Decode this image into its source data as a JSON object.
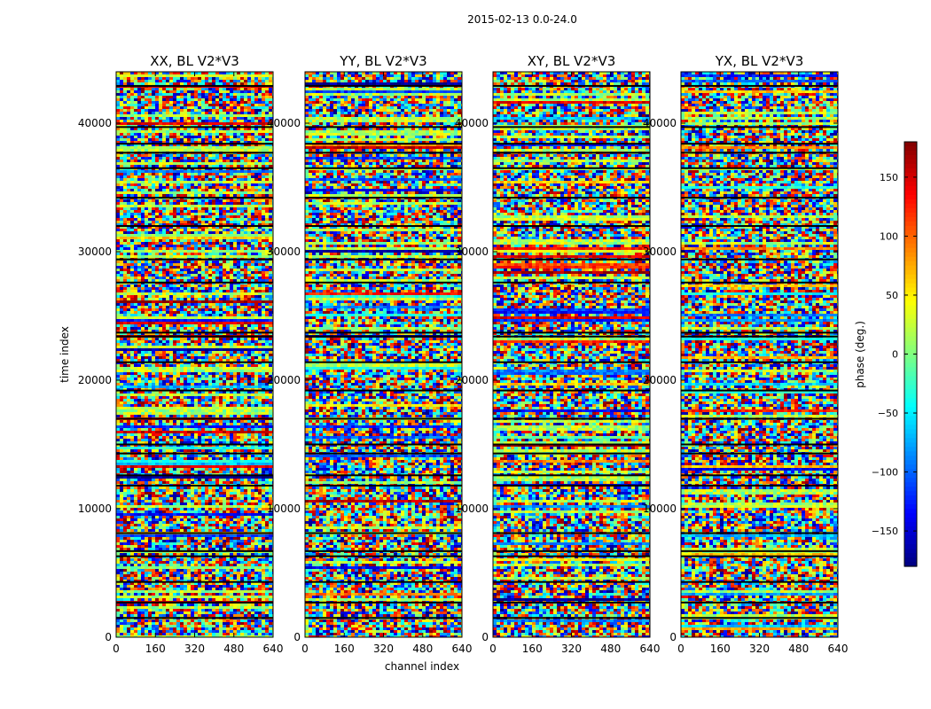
{
  "suptitle": "2015-02-13 0.0-24.0",
  "chart_data": {
    "type": "heatmap",
    "title": "2015-02-13 0.0-24.0",
    "xlabel": "channel index",
    "ylabel": "time index",
    "xlim": [
      0,
      640
    ],
    "ylim": [
      0,
      44000
    ],
    "x_ticks": [
      0,
      160,
      320,
      480,
      640
    ],
    "x_tick_labels": [
      "0",
      "160",
      "320",
      "480",
      "640"
    ],
    "y_ticks": [
      0,
      10000,
      20000,
      30000,
      40000
    ],
    "y_tick_labels": [
      "0",
      "10000",
      "20000",
      "30000",
      "40000"
    ],
    "panels": [
      {
        "title": "XX, BL V2*V3",
        "polarization": "XX"
      },
      {
        "title": "YY, BL V2*V3",
        "polarization": "YY"
      },
      {
        "title": "XY, BL V2*V3",
        "polarization": "XY"
      },
      {
        "title": "YX, BL V2*V3",
        "polarization": "YX"
      }
    ],
    "colorbar": {
      "label": "phase (deg.)",
      "range": [
        -180,
        180
      ],
      "ticks": [
        -150,
        -100,
        -50,
        0,
        50,
        100,
        150
      ],
      "tick_labels": [
        "−150",
        "−100",
        "−50",
        "0",
        "50",
        "100",
        "150"
      ],
      "colormap": "jet"
    }
  }
}
